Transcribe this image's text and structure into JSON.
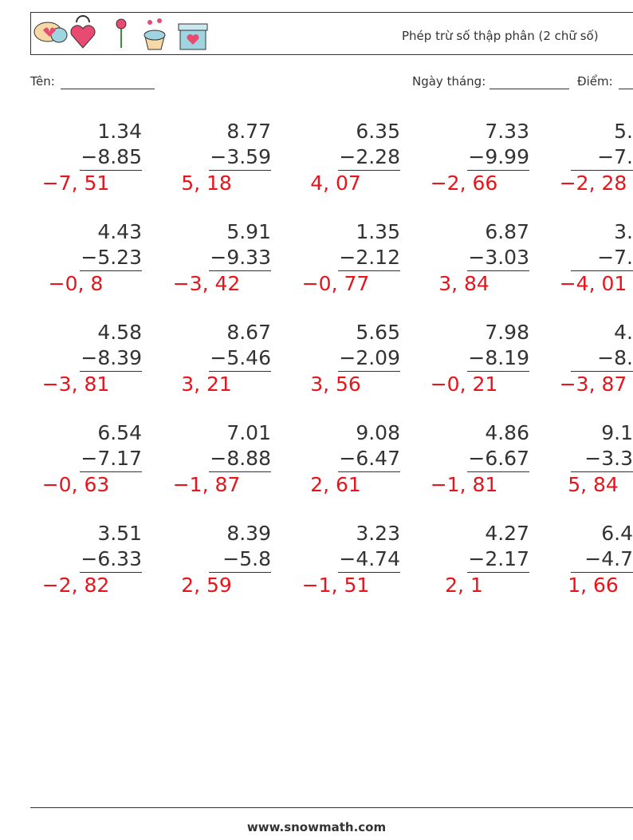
{
  "header": {
    "title": "Phép trừ số thập phân (2 chữ số)"
  },
  "fields": {
    "name": "Tên:",
    "date": "Ngày tháng:",
    "score": "Điểm:"
  },
  "problems": [
    [
      {
        "a": "1.34",
        "b": "−8.85",
        "answer": "−7, 51"
      },
      {
        "a": "8.77",
        "b": "−3.59",
        "answer": "5, 18"
      },
      {
        "a": "6.35",
        "b": "−2.28",
        "answer": "4, 07"
      },
      {
        "a": "7.33",
        "b": "−9.99",
        "answer": "−2, 66"
      },
      {
        "a": "5.",
        "b": "−7.",
        "answer": "−2, 28"
      }
    ],
    [
      {
        "a": "4.43",
        "b": "−5.23",
        "answer": "−0, 8"
      },
      {
        "a": "5.91",
        "b": "−9.33",
        "answer": "−3, 42"
      },
      {
        "a": "1.35",
        "b": "−2.12",
        "answer": "−0, 77"
      },
      {
        "a": "6.87",
        "b": "−3.03",
        "answer": "3, 84"
      },
      {
        "a": "3.",
        "b": "−7.",
        "answer": "−4, 01"
      }
    ],
    [
      {
        "a": "4.58",
        "b": "−8.39",
        "answer": "−3, 81"
      },
      {
        "a": "8.67",
        "b": "−5.46",
        "answer": "3, 21"
      },
      {
        "a": "5.65",
        "b": "−2.09",
        "answer": "3, 56"
      },
      {
        "a": "7.98",
        "b": "−8.19",
        "answer": "−0, 21"
      },
      {
        "a": "4.",
        "b": "−8.",
        "answer": "−3, 87"
      }
    ],
    [
      {
        "a": "6.54",
        "b": "−7.17",
        "answer": "−0, 63"
      },
      {
        "a": "7.01",
        "b": "−8.88",
        "answer": "−1, 87"
      },
      {
        "a": "9.08",
        "b": "−6.47",
        "answer": "2, 61"
      },
      {
        "a": "4.86",
        "b": "−6.67",
        "answer": "−1, 81"
      },
      {
        "a": "9.1",
        "b": "−3.3",
        "answer": "5, 84"
      }
    ],
    [
      {
        "a": "3.51",
        "b": "−6.33",
        "answer": "−2, 82"
      },
      {
        "a": "8.39",
        "b": "−5.8",
        "answer": "2, 59"
      },
      {
        "a": "3.23",
        "b": "−4.74",
        "answer": "−1, 51"
      },
      {
        "a": "4.27",
        "b": "−2.17",
        "answer": "2, 1"
      },
      {
        "a": "6.4",
        "b": "−4.7",
        "answer": "1, 66"
      }
    ]
  ],
  "footer": "www.snowmath.com"
}
